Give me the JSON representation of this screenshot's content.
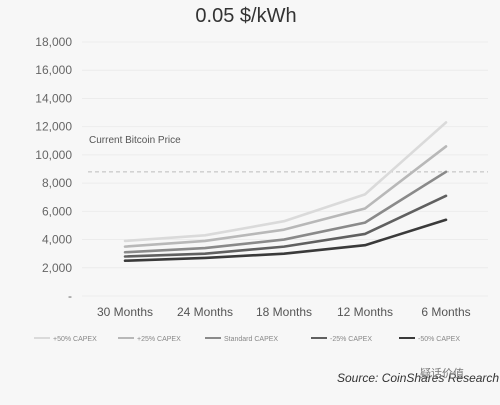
{
  "chart_data": {
    "type": "line",
    "title": "0.05 $/kWh",
    "categories": [
      "30 Months",
      "24 Months",
      "18 Months",
      "12 Months",
      "6 Months"
    ],
    "yticks": [
      "18,000",
      "16,000",
      "14,000",
      "12,000",
      "10,000",
      "8,000",
      "6,000",
      "4,000",
      "2,000",
      "-"
    ],
    "ylim": [
      0,
      18000
    ],
    "grid": true,
    "legend_position": "bottom",
    "series": [
      {
        "name": "+50% CAPEX",
        "values": [
          3900,
          4300,
          5300,
          7200,
          12300
        ],
        "color": "#dadada"
      },
      {
        "name": "+25% CAPEX",
        "values": [
          3500,
          3900,
          4700,
          6200,
          10600
        ],
        "color": "#b8b8b8"
      },
      {
        "name": "Standard CAPEX",
        "values": [
          3100,
          3400,
          4000,
          5200,
          8800
        ],
        "color": "#8a8a8a"
      },
      {
        "name": "-25% CAPEX",
        "values": [
          2800,
          3000,
          3500,
          4400,
          7100
        ],
        "color": "#606060"
      },
      {
        "name": "-50% CAPEX",
        "values": [
          2500,
          2700,
          3000,
          3600,
          5400
        ],
        "color": "#3a3a3a"
      }
    ],
    "reference_line": {
      "label": "Current Bitcoin Price",
      "value": 8800,
      "style": "dashed"
    }
  },
  "source": "Source: CoinShares Research (May 2019)",
  "watermark": "疑话价值"
}
